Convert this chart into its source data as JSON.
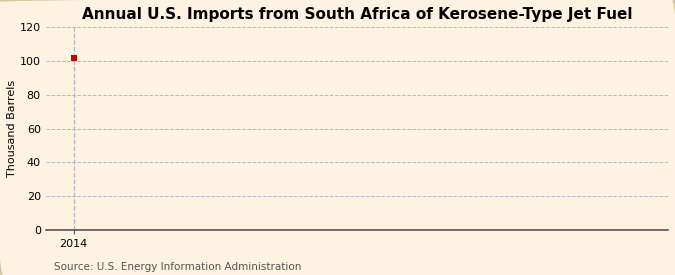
{
  "title": "Annual U.S. Imports from South Africa of Kerosene-Type Jet Fuel",
  "ylabel": "Thousand Barrels",
  "source": "Source: U.S. Energy Information Administration",
  "background_color": "#fdf3e0",
  "plot_background_color": "#fdf3e0",
  "data_x": [
    2014
  ],
  "data_y": [
    102
  ],
  "marker_color": "#cc0000",
  "marker_size": 4,
  "xlim": [
    2013.6,
    2022.5
  ],
  "ylim": [
    0,
    120
  ],
  "yticks": [
    0,
    20,
    40,
    60,
    80,
    100,
    120
  ],
  "xticks": [
    2014
  ],
  "grid_color": "#b0b8c8",
  "grid_linestyle": "--",
  "grid_linewidth": 0.7,
  "vline_color": "#b0b8c8",
  "vline_linestyle": "--",
  "vline_linewidth": 0.9,
  "title_fontsize": 11,
  "label_fontsize": 8,
  "tick_fontsize": 8,
  "source_fontsize": 7.5,
  "border_color": "#d4c4a0",
  "border_linewidth": 1.5
}
